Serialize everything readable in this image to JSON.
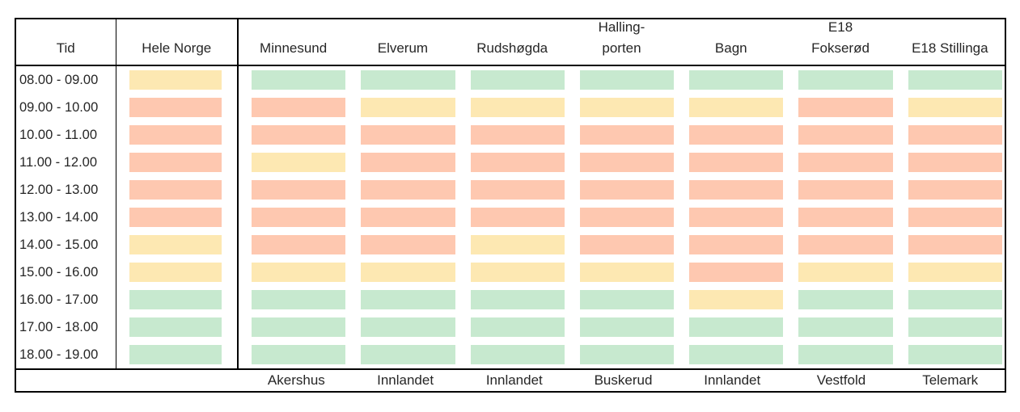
{
  "table": {
    "corner_label": "Tid",
    "national_label": "Hele Norge",
    "location_headers": [
      {
        "line1": "",
        "line2": "Minnesund"
      },
      {
        "line1": "",
        "line2": "Elverum"
      },
      {
        "line1": "",
        "line2": "Rudshøgda"
      },
      {
        "line1": "Halling-",
        "line2": "porten"
      },
      {
        "line1": "",
        "line2": "Bagn"
      },
      {
        "line1": "E18",
        "line2": "Fokserød"
      },
      {
        "line1": "",
        "line2": "E18 Stillinga"
      }
    ],
    "rows": [
      {
        "time": "08.00 - 09.00",
        "statuses": [
          "yellow",
          "green",
          "green",
          "green",
          "green",
          "green",
          "green",
          "green"
        ]
      },
      {
        "time": "09.00 - 10.00",
        "statuses": [
          "red",
          "red",
          "yellow",
          "yellow",
          "yellow",
          "yellow",
          "red",
          "yellow"
        ]
      },
      {
        "time": "10.00 - 11.00",
        "statuses": [
          "red",
          "red",
          "red",
          "red",
          "red",
          "red",
          "red",
          "red"
        ]
      },
      {
        "time": "11.00 - 12.00",
        "statuses": [
          "red",
          "yellow",
          "red",
          "red",
          "red",
          "red",
          "red",
          "red"
        ]
      },
      {
        "time": "12.00 - 13.00",
        "statuses": [
          "red",
          "red",
          "red",
          "red",
          "red",
          "red",
          "red",
          "red"
        ]
      },
      {
        "time": "13.00 - 14.00",
        "statuses": [
          "red",
          "red",
          "red",
          "red",
          "red",
          "red",
          "red",
          "red"
        ]
      },
      {
        "time": "14.00 - 15.00",
        "statuses": [
          "yellow",
          "red",
          "red",
          "yellow",
          "red",
          "red",
          "red",
          "red"
        ]
      },
      {
        "time": "15.00 - 16.00",
        "statuses": [
          "yellow",
          "yellow",
          "yellow",
          "yellow",
          "yellow",
          "red",
          "yellow",
          "yellow"
        ]
      },
      {
        "time": "16.00 - 17.00",
        "statuses": [
          "green",
          "green",
          "green",
          "green",
          "green",
          "yellow",
          "green",
          "green"
        ]
      },
      {
        "time": "17.00 - 18.00",
        "statuses": [
          "green",
          "green",
          "green",
          "green",
          "green",
          "green",
          "green",
          "green"
        ]
      },
      {
        "time": "18.00 - 19.00",
        "statuses": [
          "green",
          "green",
          "green",
          "green",
          "green",
          "green",
          "green",
          "green"
        ]
      }
    ],
    "regions": [
      "Akershus",
      "Innlandet",
      "Innlandet",
      "Buskerud",
      "Innlandet",
      "Vestfold",
      "Telemark"
    ]
  },
  "colors": {
    "green": "#C7E9CF",
    "yellow": "#FDE8B2",
    "red": "#FEC8B0",
    "border": "#000000",
    "text": "#262626"
  },
  "chart_data": {
    "type": "heatmap",
    "title": "",
    "xlabel": "",
    "ylabel": "Tid",
    "x_categories": [
      "Hele Norge",
      "Minnesund",
      "Elverum",
      "Rudshøgda",
      "Hallingporten",
      "Bagn",
      "E18 Fokserød",
      "E18 Stillinga"
    ],
    "x_regions": [
      null,
      "Akershus",
      "Innlandet",
      "Innlandet",
      "Buskerud",
      "Innlandet",
      "Vestfold",
      "Telemark"
    ],
    "y_categories": [
      "08.00 - 09.00",
      "09.00 - 10.00",
      "10.00 - 11.00",
      "11.00 - 12.00",
      "12.00 - 13.00",
      "13.00 - 14.00",
      "14.00 - 15.00",
      "15.00 - 16.00",
      "16.00 - 17.00",
      "17.00 - 18.00",
      "18.00 - 19.00"
    ],
    "values": [
      [
        "yellow",
        "green",
        "green",
        "green",
        "green",
        "green",
        "green",
        "green"
      ],
      [
        "red",
        "red",
        "yellow",
        "yellow",
        "yellow",
        "yellow",
        "red",
        "yellow"
      ],
      [
        "red",
        "red",
        "red",
        "red",
        "red",
        "red",
        "red",
        "red"
      ],
      [
        "red",
        "yellow",
        "red",
        "red",
        "red",
        "red",
        "red",
        "red"
      ],
      [
        "red",
        "red",
        "red",
        "red",
        "red",
        "red",
        "red",
        "red"
      ],
      [
        "red",
        "red",
        "red",
        "red",
        "red",
        "red",
        "red",
        "red"
      ],
      [
        "yellow",
        "red",
        "red",
        "yellow",
        "red",
        "red",
        "red",
        "red"
      ],
      [
        "yellow",
        "yellow",
        "yellow",
        "yellow",
        "yellow",
        "red",
        "yellow",
        "yellow"
      ],
      [
        "green",
        "green",
        "green",
        "green",
        "green",
        "yellow",
        "green",
        "green"
      ],
      [
        "green",
        "green",
        "green",
        "green",
        "green",
        "green",
        "green",
        "green"
      ],
      [
        "green",
        "green",
        "green",
        "green",
        "green",
        "green",
        "green",
        "green"
      ]
    ],
    "value_colors": {
      "green": "#C7E9CF",
      "yellow": "#FDE8B2",
      "red": "#FEC8B0"
    },
    "grid": false,
    "legend": "none"
  }
}
